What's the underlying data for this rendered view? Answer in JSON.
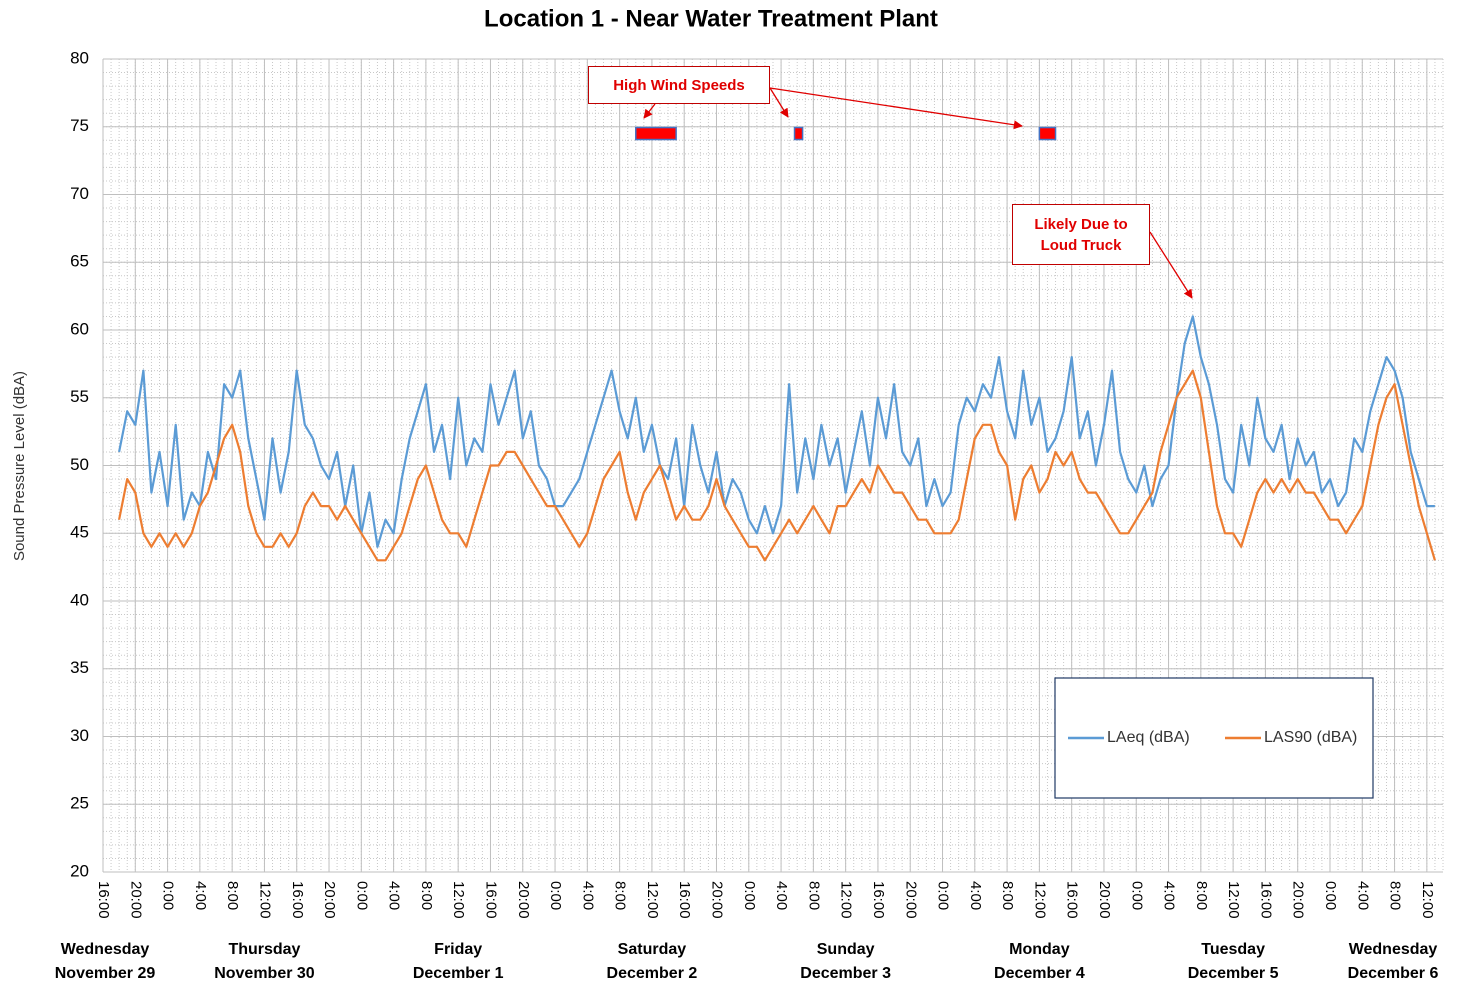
{
  "chart_data": {
    "type": "line",
    "title": "Location 1 - Near Water Treatment Plant",
    "ylabel": "Sound Pressure Level (dBA)",
    "ylim": [
      20,
      80
    ],
    "yticks": [
      20,
      25,
      30,
      35,
      40,
      45,
      50,
      55,
      60,
      65,
      70,
      75,
      80
    ],
    "xlim": [
      "11-29 16:00",
      "12-06 14:00"
    ],
    "grid": true,
    "legend": "lower right",
    "xticks": [
      {
        "value": "11-29 16:00",
        "label": "16:00"
      },
      {
        "value": "11-29 20:00",
        "label": "20:00"
      },
      {
        "value": "11-30 0:00",
        "label": "0:00"
      },
      {
        "value": "11-30 4:00",
        "label": "4:00"
      },
      {
        "value": "11-30 8:00",
        "label": "8:00"
      },
      {
        "value": "11-30 12:00",
        "label": "12:00"
      },
      {
        "value": "11-30 16:00",
        "label": "16:00"
      },
      {
        "value": "11-30 20:00",
        "label": "20:00"
      },
      {
        "value": "12-01 0:00",
        "label": "0:00"
      },
      {
        "value": "12-01 4:00",
        "label": "4:00"
      },
      {
        "value": "12-01 8:00",
        "label": "8:00"
      },
      {
        "value": "12-01 12:00",
        "label": "12:00"
      },
      {
        "value": "12-01 16:00",
        "label": "16:00"
      },
      {
        "value": "12-01 20:00",
        "label": "20:00"
      },
      {
        "value": "12-02 0:00",
        "label": "0:00"
      },
      {
        "value": "12-02 4:00",
        "label": "4:00"
      },
      {
        "value": "12-02 8:00",
        "label": "8:00"
      },
      {
        "value": "12-02 12:00",
        "label": "12:00"
      },
      {
        "value": "12-02 16:00",
        "label": "16:00"
      },
      {
        "value": "12-02 20:00",
        "label": "20:00"
      },
      {
        "value": "12-03 0:00",
        "label": "0:00"
      },
      {
        "value": "12-03 4:00",
        "label": "4:00"
      },
      {
        "value": "12-03 8:00",
        "label": "8:00"
      },
      {
        "value": "12-03 12:00",
        "label": "12:00"
      },
      {
        "value": "12-03 16:00",
        "label": "16:00"
      },
      {
        "value": "12-03 20:00",
        "label": "20:00"
      },
      {
        "value": "12-04 0:00",
        "label": "0:00"
      },
      {
        "value": "12-04 4:00",
        "label": "4:00"
      },
      {
        "value": "12-04 8:00",
        "label": "8:00"
      },
      {
        "value": "12-04 12:00",
        "label": "12:00"
      },
      {
        "value": "12-04 16:00",
        "label": "16:00"
      },
      {
        "value": "12-04 20:00",
        "label": "20:00"
      },
      {
        "value": "12-05 0:00",
        "label": "0:00"
      },
      {
        "value": "12-05 4:00",
        "label": "4:00"
      },
      {
        "value": "12-05 8:00",
        "label": "8:00"
      },
      {
        "value": "12-05 12:00",
        "label": "12:00"
      },
      {
        "value": "12-05 16:00",
        "label": "16:00"
      },
      {
        "value": "12-05 20:00",
        "label": "20:00"
      },
      {
        "value": "12-06 0:00",
        "label": "0:00"
      },
      {
        "value": "12-06 4:00",
        "label": "4:00"
      },
      {
        "value": "12-06 8:00",
        "label": "8:00"
      },
      {
        "value": "12-06 12:00",
        "label": "12:00"
      }
    ],
    "days": [
      {
        "day": "Wednesday",
        "date": "November 29"
      },
      {
        "day": "Thursday",
        "date": "November 30"
      },
      {
        "day": "Friday",
        "date": "December 1"
      },
      {
        "day": "Saturday",
        "date": "December 2"
      },
      {
        "day": "Sunday",
        "date": "December 3"
      },
      {
        "day": "Monday",
        "date": "December 4"
      },
      {
        "day": "Tuesday",
        "date": "December 5"
      },
      {
        "day": "Wednesday",
        "date": "December 6"
      }
    ],
    "x": [
      "11-29 18:00",
      "11-29 19:00",
      "11-29 20:00",
      "11-29 21:00",
      "11-29 22:00",
      "11-29 23:00",
      "11-30 0:00",
      "11-30 1:00",
      "11-30 2:00",
      "11-30 3:00",
      "11-30 4:00",
      "11-30 5:00",
      "11-30 6:00",
      "11-30 7:00",
      "11-30 8:00",
      "11-30 9:00",
      "11-30 10:00",
      "11-30 11:00",
      "11-30 12:00",
      "11-30 13:00",
      "11-30 14:00",
      "11-30 15:00",
      "11-30 16:00",
      "11-30 17:00",
      "11-30 18:00",
      "11-30 19:00",
      "11-30 20:00",
      "11-30 21:00",
      "11-30 22:00",
      "11-30 23:00",
      "12-01 0:00",
      "12-01 1:00",
      "12-01 2:00",
      "12-01 3:00",
      "12-01 4:00",
      "12-01 5:00",
      "12-01 6:00",
      "12-01 7:00",
      "12-01 8:00",
      "12-01 9:00",
      "12-01 10:00",
      "12-01 11:00",
      "12-01 12:00",
      "12-01 13:00",
      "12-01 14:00",
      "12-01 15:00",
      "12-01 16:00",
      "12-01 17:00",
      "12-01 18:00",
      "12-01 19:00",
      "12-01 20:00",
      "12-01 21:00",
      "12-01 22:00",
      "12-01 23:00",
      "12-02 0:00",
      "12-02 1:00",
      "12-02 2:00",
      "12-02 3:00",
      "12-02 4:00",
      "12-02 5:00",
      "12-02 6:00",
      "12-02 7:00",
      "12-02 8:00",
      "12-02 9:00",
      "12-02 10:00",
      "12-02 11:00",
      "12-02 12:00",
      "12-02 13:00",
      "12-02 14:00",
      "12-02 15:00",
      "12-02 16:00",
      "12-02 17:00",
      "12-02 18:00",
      "12-02 19:00",
      "12-02 20:00",
      "12-02 21:00",
      "12-02 22:00",
      "12-02 23:00",
      "12-03 0:00",
      "12-03 1:00",
      "12-03 2:00",
      "12-03 3:00",
      "12-03 4:00",
      "12-03 5:00",
      "12-03 6:00",
      "12-03 7:00",
      "12-03 8:00",
      "12-03 9:00",
      "12-03 10:00",
      "12-03 11:00",
      "12-03 12:00",
      "12-03 13:00",
      "12-03 14:00",
      "12-03 15:00",
      "12-03 16:00",
      "12-03 17:00",
      "12-03 18:00",
      "12-03 19:00",
      "12-03 20:00",
      "12-03 21:00",
      "12-03 22:00",
      "12-03 23:00",
      "12-04 0:00",
      "12-04 1:00",
      "12-04 2:00",
      "12-04 3:00",
      "12-04 4:00",
      "12-04 5:00",
      "12-04 6:00",
      "12-04 7:00",
      "12-04 8:00",
      "12-04 9:00",
      "12-04 10:00",
      "12-04 11:00",
      "12-04 12:00",
      "12-04 13:00",
      "12-04 14:00",
      "12-04 15:00",
      "12-04 16:00",
      "12-04 17:00",
      "12-04 18:00",
      "12-04 19:00",
      "12-04 20:00",
      "12-04 21:00",
      "12-04 22:00",
      "12-04 23:00",
      "12-05 0:00",
      "12-05 1:00",
      "12-05 2:00",
      "12-05 3:00",
      "12-05 4:00",
      "12-05 5:00",
      "12-05 6:00",
      "12-05 7:00",
      "12-05 8:00",
      "12-05 9:00",
      "12-05 10:00",
      "12-05 11:00",
      "12-05 12:00",
      "12-05 13:00",
      "12-05 14:00",
      "12-05 15:00",
      "12-05 16:00",
      "12-05 17:00",
      "12-05 18:00",
      "12-05 19:00",
      "12-05 20:00",
      "12-05 21:00",
      "12-05 22:00",
      "12-05 23:00",
      "12-06 0:00",
      "12-06 1:00",
      "12-06 2:00",
      "12-06 3:00",
      "12-06 4:00",
      "12-06 5:00",
      "12-06 6:00",
      "12-06 7:00",
      "12-06 8:00",
      "12-06 9:00",
      "12-06 10:00",
      "12-06 11:00",
      "12-06 12:00",
      "12-06 13:00"
    ],
    "series": [
      {
        "name": "LAeq (dBA)",
        "color": "#5b9bd5",
        "values": [
          51,
          54,
          53,
          57,
          48,
          51,
          47,
          53,
          46,
          48,
          47,
          51,
          49,
          56,
          55,
          57,
          52,
          49,
          46,
          52,
          48,
          51,
          57,
          53,
          52,
          50,
          49,
          51,
          47,
          50,
          45,
          48,
          44,
          46,
          45,
          49,
          52,
          54,
          56,
          51,
          53,
          49,
          55,
          50,
          52,
          51,
          56,
          53,
          55,
          57,
          52,
          54,
          50,
          49,
          47,
          47,
          48,
          49,
          51,
          53,
          55,
          57,
          54,
          52,
          55,
          51,
          53,
          50,
          49,
          52,
          47,
          53,
          50,
          48,
          51,
          47,
          49,
          48,
          46,
          45,
          47,
          45,
          47,
          56,
          48,
          52,
          49,
          53,
          50,
          52,
          48,
          51,
          54,
          50,
          55,
          52,
          56,
          51,
          50,
          52,
          47,
          49,
          47,
          48,
          53,
          55,
          54,
          56,
          55,
          58,
          54,
          52,
          57,
          53,
          55,
          51,
          52,
          54,
          58,
          52,
          54,
          50,
          53,
          57,
          51,
          49,
          48,
          50,
          47,
          49,
          50,
          55,
          59,
          61,
          58,
          56,
          53,
          49,
          48,
          53,
          50,
          55,
          52,
          51,
          53,
          49,
          52,
          50,
          51,
          48,
          49,
          47,
          48,
          52,
          51,
          54,
          56,
          58,
          57,
          55,
          51,
          49,
          47,
          47
        ]
      },
      {
        "name": "LAS90 (dBA)",
        "color": "#ed7d31",
        "values": [
          46,
          49,
          48,
          45,
          44,
          45,
          44,
          45,
          44,
          45,
          47,
          48,
          50,
          52,
          53,
          51,
          47,
          45,
          44,
          44,
          45,
          44,
          45,
          47,
          48,
          47,
          47,
          46,
          47,
          46,
          45,
          44,
          43,
          43,
          44,
          45,
          47,
          49,
          50,
          48,
          46,
          45,
          45,
          44,
          46,
          48,
          50,
          50,
          51,
          51,
          50,
          49,
          48,
          47,
          47,
          46,
          45,
          44,
          45,
          47,
          49,
          50,
          51,
          48,
          46,
          48,
          49,
          50,
          48,
          46,
          47,
          46,
          46,
          47,
          49,
          47,
          46,
          45,
          44,
          44,
          43,
          44,
          45,
          46,
          45,
          46,
          47,
          46,
          45,
          47,
          47,
          48,
          49,
          48,
          50,
          49,
          48,
          48,
          47,
          46,
          46,
          45,
          45,
          45,
          46,
          49,
          52,
          53,
          53,
          51,
          50,
          46,
          49,
          50,
          48,
          49,
          51,
          50,
          51,
          49,
          48,
          48,
          47,
          46,
          45,
          45,
          46,
          47,
          48,
          51,
          53,
          55,
          56,
          57,
          55,
          51,
          47,
          45,
          45,
          44,
          46,
          48,
          49,
          48,
          49,
          48,
          49,
          48,
          48,
          47,
          46,
          46,
          45,
          46,
          47,
          50,
          53,
          55,
          56,
          53,
          50,
          47,
          45,
          43
        ]
      }
    ],
    "wind_marker": {
      "value": 74.5,
      "color": "#ff0000",
      "periods": [
        [
          "12-02 10:00",
          "12-02 15:00"
        ],
        [
          "12-03 5:40",
          "12-03 6:40"
        ],
        [
          "12-04 12:00",
          "12-04 14:00"
        ]
      ]
    },
    "annotations": [
      "High Wind Speeds",
      "Likely Due to Loud Truck"
    ]
  }
}
